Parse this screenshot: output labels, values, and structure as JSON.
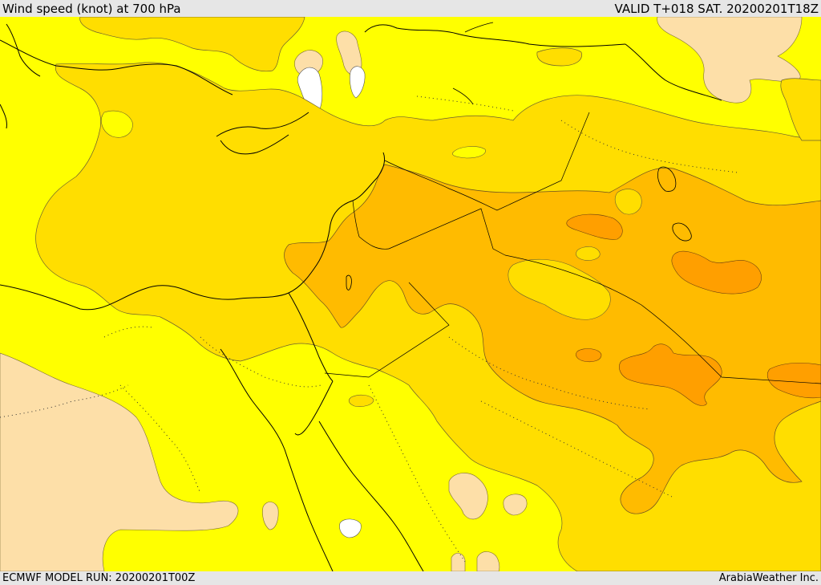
{
  "header": {
    "title": "Wind speed (knot) at 700 hPa",
    "valid": "VALID T+018 SAT. 20200201T18Z"
  },
  "footer": {
    "model_run": "ECMWF MODEL RUN: 20200201T00Z",
    "credit": "ArabiaWeather Inc."
  },
  "map": {
    "colors": {
      "band_0_10": "#ffffff",
      "band_10_20": "#fddfa8",
      "band_20_30": "#ffff00",
      "band_30_40": "#ffde00",
      "band_40_50": "#ffbb00",
      "band_50_60": "#ff9f00",
      "coastline": "#000000"
    }
  }
}
